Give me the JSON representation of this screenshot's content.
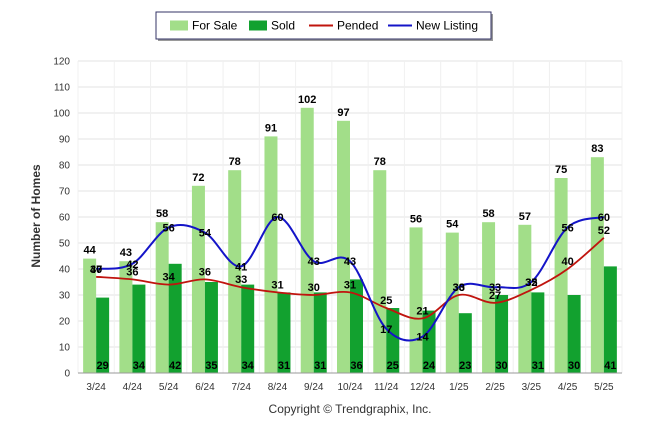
{
  "chart_data": {
    "type": "bar",
    "title": "",
    "xlabel": "",
    "ylabel": "Number of Homes",
    "ylim": [
      0,
      120
    ],
    "yticks": [
      0,
      10,
      20,
      30,
      40,
      50,
      60,
      70,
      80,
      90,
      100,
      110,
      120
    ],
    "grid": true,
    "legend_position": "top",
    "categories": [
      "3/24",
      "4/24",
      "5/24",
      "6/24",
      "7/24",
      "8/24",
      "9/24",
      "10/24",
      "11/24",
      "12/24",
      "1/25",
      "2/25",
      "3/25",
      "4/25",
      "5/25"
    ],
    "series": [
      {
        "name": "For Sale",
        "kind": "bar",
        "color": "#a2de89",
        "values": [
          44,
          43,
          58,
          72,
          78,
          91,
          102,
          97,
          78,
          56,
          54,
          58,
          57,
          75,
          83
        ]
      },
      {
        "name": "Sold",
        "kind": "bar",
        "color": "#12a12f",
        "values": [
          29,
          34,
          42,
          35,
          34,
          31,
          31,
          36,
          25,
          24,
          23,
          30,
          31,
          30,
          41
        ]
      },
      {
        "name": "Pended",
        "kind": "line",
        "color": "#c0140e",
        "values": [
          37,
          36,
          34,
          36,
          33,
          31,
          30,
          31,
          25,
          21,
          30,
          27,
          32,
          40,
          52
        ]
      },
      {
        "name": "New Listing",
        "kind": "line",
        "color": "#1414c8",
        "values": [
          40,
          42,
          56,
          54,
          41,
          60,
          43,
          43,
          17,
          14,
          33,
          33,
          35,
          56,
          60
        ]
      }
    ],
    "annotation": "Copyright © Trendgraphix, Inc."
  }
}
